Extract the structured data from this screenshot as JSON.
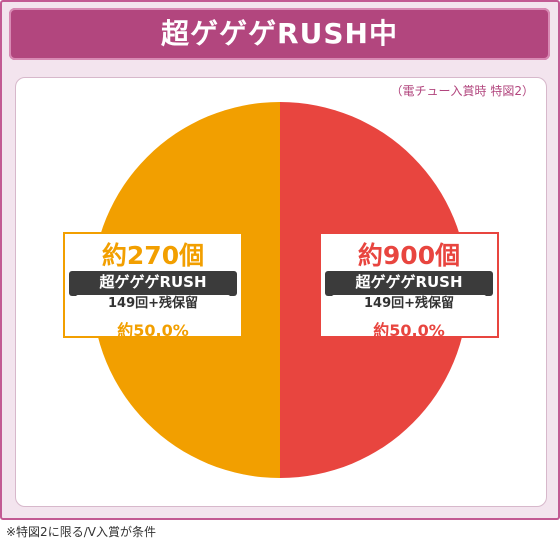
{
  "header": {
    "title": "超ゲゲゲRUSH中"
  },
  "note": "（電チュー入賞時 特図2）",
  "footnote": "※特図2に限る/V入賞が条件",
  "colors": {
    "left": "#f29f00",
    "right": "#e8453f",
    "frame": "#b2467e"
  },
  "chart_data": {
    "type": "pie",
    "slices": [
      {
        "label": "約270個",
        "value": 50.0,
        "sub_label": "超ゲゲゲRUSH",
        "sub_detail": "149回+残保留",
        "percent_text": "約50.0%",
        "color": "#f29f00"
      },
      {
        "label": "約900個",
        "value": 50.0,
        "sub_label": "超ゲゲゲRUSH",
        "sub_detail": "149回+残保留",
        "percent_text": "約50.0%",
        "color": "#e8453f"
      }
    ]
  }
}
